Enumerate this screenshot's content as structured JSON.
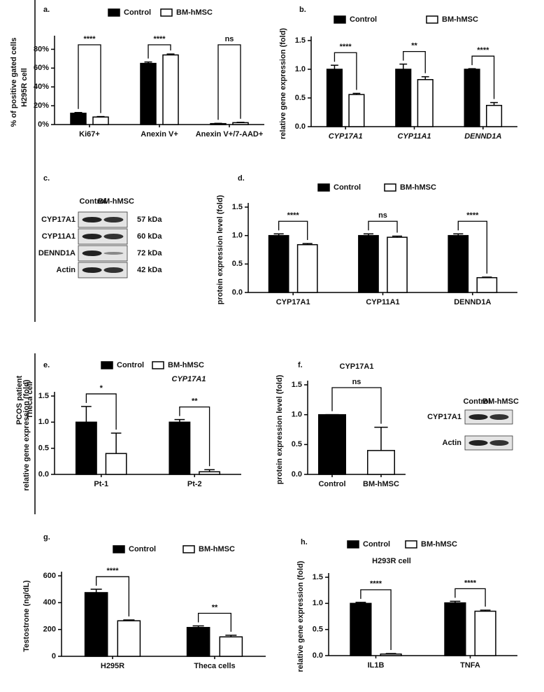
{
  "chart_data": [
    {
      "type": "bar",
      "label": "a.",
      "ylabel": "% of positive gated cells",
      "categories": [
        "Ki67+",
        "Anexin V+",
        "Anexin V+/7-AAD+"
      ],
      "series": [
        {
          "name": "Control",
          "color": "#000000",
          "values": [
            12,
            65,
            1
          ],
          "errors": [
            0.8,
            1.5,
            0.3
          ]
        },
        {
          "name": "BM-hMSC",
          "color": "#ffffff",
          "values": [
            8,
            74,
            2
          ],
          "errors": [
            0.5,
            1,
            0.4
          ]
        }
      ],
      "significance": [
        "****",
        "****",
        "ns"
      ],
      "ylim": [
        0,
        90
      ],
      "yticks": [
        {
          "value": 0,
          "label": "0%"
        },
        {
          "value": 20,
          "label": "20%"
        },
        {
          "value": 40,
          "label": "40%"
        },
        {
          "value": 60,
          "label": "60%"
        },
        {
          "value": 80,
          "label": "80%"
        }
      ]
    },
    {
      "type": "bar",
      "label": "b.",
      "ylabel": "relative gene expression (fold)",
      "categories": [
        "CYP17A1",
        "CYP11A1",
        "DENND1A"
      ],
      "series": [
        {
          "name": "Control",
          "color": "#000000",
          "values": [
            1,
            1,
            1
          ],
          "errors": [
            0.07,
            0.09,
            0.01
          ]
        },
        {
          "name": "BM-hMSC",
          "color": "#ffffff",
          "values": [
            0.56,
            0.82,
            0.37
          ],
          "errors": [
            0.02,
            0.05,
            0.05
          ]
        }
      ],
      "significance": [
        "****",
        "**",
        "****"
      ],
      "ylim": [
        0,
        1.5
      ],
      "yticks": [
        {
          "value": 0,
          "label": "0.0"
        },
        0.5,
        {
          "value": 1,
          "label": "1.0"
        },
        1.5
      ]
    },
    {
      "type": "bar",
      "label": "d.",
      "ylabel": "protein expression level (fold)",
      "categories": [
        "CYP17A1",
        "CYP11A1",
        "DENND1A"
      ],
      "series": [
        {
          "name": "Control",
          "color": "#000000",
          "values": [
            1,
            1,
            1
          ],
          "errors": [
            0.03,
            0.03,
            0.03
          ]
        },
        {
          "name": "BM-hMSC",
          "color": "#ffffff",
          "values": [
            0.84,
            0.97,
            0.26
          ],
          "errors": [
            0.02,
            0.02,
            0.01
          ]
        }
      ],
      "significance": [
        "****",
        "ns",
        "****"
      ],
      "ylim": [
        0,
        1.5
      ],
      "yticks": [
        {
          "value": 0,
          "label": "0.0"
        },
        0.5,
        {
          "value": 1,
          "label": "1.0"
        },
        1.5
      ]
    },
    {
      "type": "bar",
      "label": "e.",
      "title": "CYP17A1",
      "ylabel": "relative gene expression (fold)",
      "categories": [
        "Pt-1",
        "Pt-2"
      ],
      "series": [
        {
          "name": "Control",
          "color": "#000000",
          "values": [
            1,
            1
          ],
          "errors": [
            0.3,
            0.05
          ]
        },
        {
          "name": "BM-hMSC",
          "color": "#ffffff",
          "values": [
            0.4,
            0.05
          ],
          "errors": [
            0.39,
            0.04
          ]
        }
      ],
      "significance": [
        "*",
        "**"
      ],
      "ylim": [
        0,
        1.5
      ],
      "yticks": [
        {
          "value": 0,
          "label": "0.0"
        },
        0.5,
        {
          "value": 1,
          "label": "1.0"
        },
        1.5
      ]
    },
    {
      "type": "bar",
      "label": "f.",
      "title": "CYP17A1",
      "ylabel": "protein expression level (fold)",
      "categories": [
        "Control",
        "BM-hMSC"
      ],
      "values": [
        1,
        0.4
      ],
      "errors": [
        0,
        0.39
      ],
      "colors": [
        "#000000",
        "#ffffff"
      ],
      "significance": [
        "ns"
      ],
      "ylim": [
        0,
        1.5
      ],
      "yticks": [
        {
          "value": 0,
          "label": "0.0"
        },
        0.5,
        {
          "value": 1,
          "label": "1.0"
        },
        1.5
      ]
    },
    {
      "type": "bar",
      "label": "g.",
      "ylabel": "Testostrone (ng/dL)",
      "categories": [
        "H295R",
        "Theca cells"
      ],
      "series": [
        {
          "name": "Control",
          "color": "#000000",
          "values": [
            475,
            215
          ],
          "errors": [
            25,
            12
          ]
        },
        {
          "name": "BM-hMSC",
          "color": "#ffffff",
          "values": [
            265,
            145
          ],
          "errors": [
            6,
            12
          ]
        }
      ],
      "significance": [
        "****",
        "**"
      ],
      "ylim": [
        0,
        600
      ],
      "yticks": [
        0,
        200,
        400,
        600
      ]
    },
    {
      "type": "bar",
      "label": "h.",
      "subtitle": "H293R cell",
      "ylabel": "relative gene expression (fold)",
      "categories": [
        "IL1B",
        "TNFA"
      ],
      "series": [
        {
          "name": "Control",
          "color": "#000000",
          "values": [
            1,
            1.01
          ],
          "errors": [
            0.02,
            0.03
          ]
        },
        {
          "name": "BM-hMSC",
          "color": "#ffffff",
          "values": [
            0.03,
            0.85
          ],
          "errors": [
            0.01,
            0.02
          ]
        }
      ],
      "significance": [
        "****",
        "****"
      ],
      "ylim": [
        0,
        1.5
      ],
      "yticks": [
        {
          "value": 0,
          "label": "0.0"
        },
        0.5,
        {
          "value": 1,
          "label": "1.0"
        },
        1.5
      ]
    }
  ],
  "blots": [
    {
      "label": "c.",
      "columns": [
        "Control",
        "BM-hMSC"
      ],
      "rows": [
        {
          "protein": "CYP17A1",
          "size": "57 kDa"
        },
        {
          "protein": "CYP11A1",
          "size": "60 kDa"
        },
        {
          "protein": "DENND1A",
          "size": "72 kDa"
        },
        {
          "protein": "Actin",
          "size": "42 kDa"
        }
      ]
    },
    {
      "columns": [
        "Control",
        "BM-hMSC"
      ],
      "rows": [
        {
          "protein": "CYP17A1"
        },
        {
          "protein": "Actin"
        }
      ]
    }
  ],
  "side_labels": [
    {
      "lines": [
        "H295R cell"
      ]
    },
    {
      "lines": [
        "PCOS patient",
        "Theca cell"
      ]
    }
  ]
}
